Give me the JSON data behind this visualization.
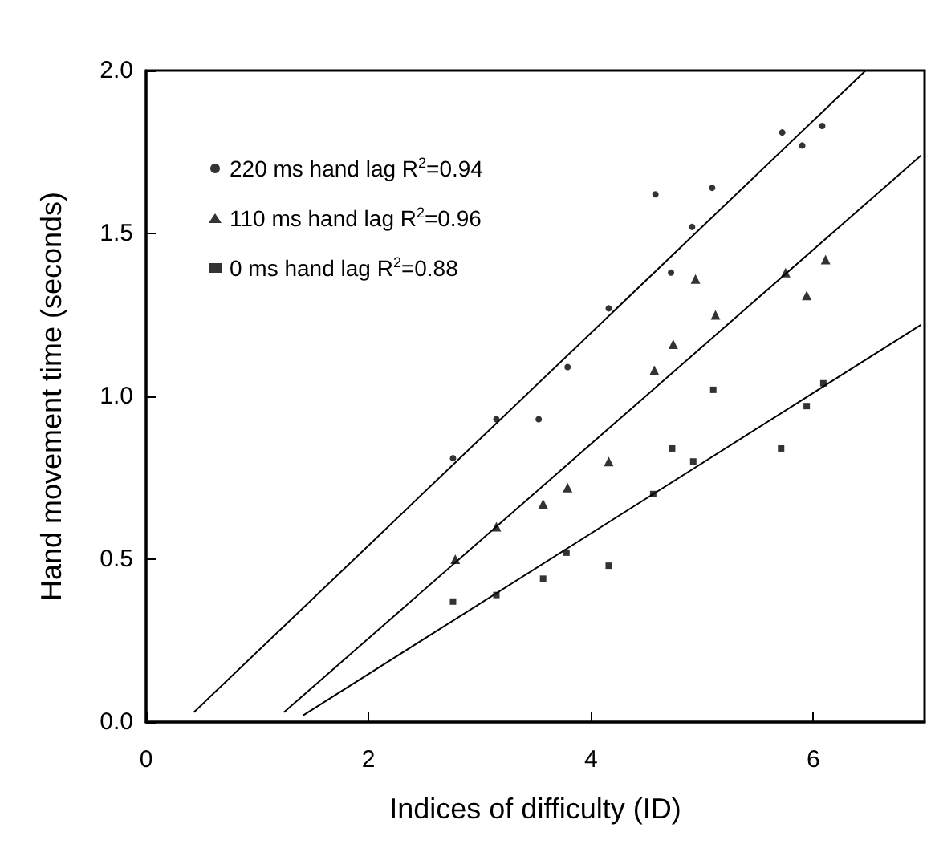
{
  "chart_data": {
    "type": "scatter",
    "xlabel": "Indices of difficulty (ID)",
    "ylabel": "Hand movement time (seconds)",
    "xlim": [
      0,
      7
    ],
    "xticks": [
      0,
      2,
      4,
      6
    ],
    "ylim": [
      0,
      2
    ],
    "yticks": [
      {
        "value": 0,
        "label": "0.0"
      },
      {
        "value": 0.5,
        "label": "0.5"
      },
      {
        "value": 1,
        "label": "1.0"
      },
      {
        "value": 1.5,
        "label": "1.5"
      },
      {
        "value": 2,
        "label": "2.0"
      }
    ],
    "grid": false,
    "legend": "top left",
    "series": [
      {
        "name": "220 ms hand lag R$^{2}$=0.94",
        "color": "#000000",
        "marker": "circle",
        "x": [
          5.72,
          5.9,
          6.08,
          4.58,
          5.09,
          4.91,
          4.72,
          4.16,
          3.79,
          3.15,
          3.53,
          2.76
        ],
        "values": [
          1.81,
          1.77,
          1.83,
          1.62,
          1.64,
          1.52,
          1.38,
          1.27,
          1.09,
          0.93,
          0.93,
          0.81
        ]
      },
      {
        "name": "110 ms hand lag R$^{2}$=0.96",
        "color": "#000000",
        "marker": "triangle",
        "x": [
          5.75,
          6.11,
          5.94,
          4.94,
          5.12,
          4.74,
          4.57,
          4.16,
          3.79,
          3.57,
          3.15,
          2.78
        ],
        "values": [
          1.38,
          1.42,
          1.31,
          1.36,
          1.25,
          1.16,
          1.08,
          0.8,
          0.72,
          0.67,
          0.6,
          0.5
        ]
      },
      {
        "name": "0 ms hand lag R$^{2}$=0.88",
        "color": "#000000",
        "marker": "square",
        "x": [
          6.09,
          5.94,
          5.71,
          5.1,
          4.73,
          4.92,
          4.56,
          4.16,
          3.78,
          3.57,
          3.15,
          2.76
        ],
        "values": [
          1.04,
          0.97,
          0.84,
          1.02,
          0.84,
          0.8,
          0.7,
          0.48,
          0.52,
          0.44,
          0.39,
          0.37
        ]
      },
      {
        "type": "line",
        "color": "#000000",
        "marker": "none",
        "x": [
          0.43,
          6.47
        ],
        "values": [
          0.03,
          2.0
        ]
      },
      {
        "type": "line",
        "color": "#000000",
        "marker": "none",
        "x": [
          1.24,
          6.97
        ],
        "values": [
          0.03,
          1.74
        ]
      },
      {
        "type": "line",
        "color": "#000000",
        "marker": "none",
        "x": [
          1.41,
          6.97
        ],
        "values": [
          0.02,
          1.22
        ]
      }
    ]
  }
}
